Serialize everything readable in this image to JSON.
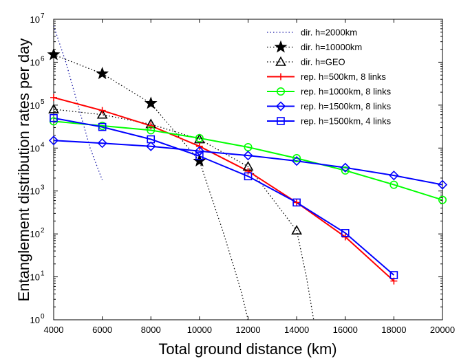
{
  "chart_data": {
    "type": "line",
    "xlabel": "Total ground distance (km)",
    "ylabel": "Entanglement distribution rates per day",
    "xlim": [
      4000,
      20000
    ],
    "ylim": [
      1,
      10000000
    ],
    "yscale": "log",
    "grid": false,
    "legend_position": "top-right",
    "x_ticks": [
      4000,
      6000,
      8000,
      10000,
      12000,
      14000,
      16000,
      18000,
      20000
    ],
    "x_tick_labels": [
      "4000",
      "6000",
      "8000",
      "10000",
      "12000",
      "14000",
      "16000",
      "18000",
      "20000"
    ],
    "y_ticks": [
      1,
      10,
      100,
      1000,
      10000,
      100000,
      1000000,
      10000000
    ],
    "y_tick_labels": [
      {
        "base": "10",
        "exp": "0"
      },
      {
        "base": "10",
        "exp": "1"
      },
      {
        "base": "10",
        "exp": "2"
      },
      {
        "base": "10",
        "exp": "3"
      },
      {
        "base": "10",
        "exp": "4"
      },
      {
        "base": "10",
        "exp": "5"
      },
      {
        "base": "10",
        "exp": "6"
      },
      {
        "base": "10",
        "exp": "7"
      }
    ],
    "series": [
      {
        "name": "dir. h=2000km",
        "color": "#1a1aa8",
        "dash": "dotted",
        "marker": "none",
        "x": [
          4000,
          4500,
          5000,
          5500,
          6000
        ],
        "y": [
          7000000,
          1000000,
          100000,
          10000,
          1800
        ]
      },
      {
        "name": "dir. h=10000km",
        "color": "#000000",
        "dash": "dotted",
        "marker": "star",
        "x": [
          4000,
          6000,
          8000,
          10000,
          11000,
          11700,
          12000
        ],
        "y": [
          1500000,
          540000,
          110000,
          5000,
          100,
          5,
          1
        ],
        "marker_x": [
          4000,
          6000,
          8000,
          10000
        ],
        "marker_y": [
          1500000,
          540000,
          110000,
          5000
        ]
      },
      {
        "name": "dir. h=GEO",
        "color": "#000000",
        "dash": "dotted",
        "marker": "triangle",
        "x": [
          4000,
          6000,
          8000,
          10000,
          12000,
          14000,
          14400,
          14700
        ],
        "y": [
          80000,
          60000,
          36000,
          16000,
          3700,
          120,
          10,
          1
        ],
        "marker_x": [
          4000,
          6000,
          8000,
          10000,
          12000,
          14000
        ],
        "marker_y": [
          80000,
          60000,
          36000,
          16000,
          3700,
          120
        ]
      },
      {
        "name": "rep. h=500km, 8 links",
        "color": "#ff0000",
        "dash": "solid",
        "marker": "plus",
        "x": [
          4000,
          6000,
          8000,
          10000,
          12000,
          14000,
          16000,
          18000
        ],
        "y": [
          150000,
          75000,
          33000,
          11000,
          2900,
          540,
          85,
          8
        ]
      },
      {
        "name": "rep. h=1000km, 8 links",
        "color": "#00ff00",
        "dash": "solid",
        "marker": "circle",
        "x": [
          4000,
          6000,
          8000,
          10000,
          12000,
          14000,
          16000,
          18000,
          20000
        ],
        "y": [
          42000,
          33000,
          26000,
          17000,
          10500,
          5800,
          3000,
          1400,
          620
        ]
      },
      {
        "name": "rep. h=1500km, 8 links",
        "color": "#0000ff",
        "dash": "solid",
        "marker": "diamond",
        "x": [
          4000,
          6000,
          8000,
          10000,
          12000,
          14000,
          16000,
          18000,
          20000
        ],
        "y": [
          15000,
          13000,
          11000,
          8500,
          6700,
          5000,
          3500,
          2300,
          1400
        ]
      },
      {
        "name": "rep. h=1500km, 4 links",
        "color": "#0000ff",
        "dash": "solid",
        "marker": "square",
        "x": [
          4000,
          6000,
          8000,
          10000,
          12000,
          14000,
          16000,
          18000
        ],
        "y": [
          50000,
          31000,
          16000,
          6500,
          2200,
          540,
          105,
          11
        ]
      }
    ]
  }
}
